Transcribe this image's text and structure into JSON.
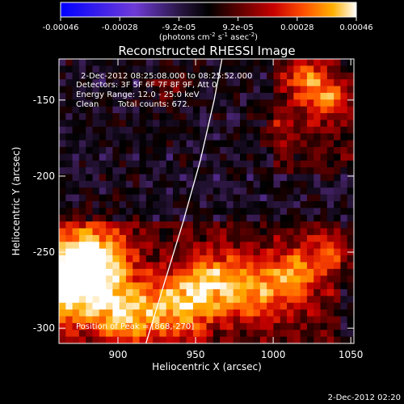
{
  "chart_data": {
    "type": "heatmap",
    "title": "Reconstructed RHESSI Image",
    "xlabel": "Heliocentric X (arcsec)",
    "ylabel": "Heliocentric Y (arcsec)",
    "xlim": [
      862,
      1052
    ],
    "ylim": [
      -310,
      -123
    ],
    "x_ticks": [
      900,
      950,
      1000,
      1050
    ],
    "y_ticks": [
      -150,
      -200,
      -250,
      -300
    ],
    "colorbar": {
      "ticks": [
        "-0.00046",
        "-0.00028",
        "-9.2e-05",
        "9.2e-05",
        "0.00028",
        "0.00046"
      ],
      "range": [
        -0.00046,
        0.00046
      ],
      "units": "(photons cm",
      "units_exp1": "-2",
      "units_mid": " s",
      "units_exp2": "-1",
      "units_mid2": " asec",
      "units_exp3": "-2",
      "units_end": ")"
    },
    "annotations": {
      "time_range": "2-Dec-2012 08:25:08.000 to 08:25:52.000",
      "detectors": "Detectors: 3F 5F 6F 7F 8F 9F, Att 0",
      "energy": "Energy Range: 12.0 - 25.0 keV",
      "clean_label": "Clean",
      "counts": "Total counts: 672.",
      "peak": "Position of Peak = [868,-270]"
    },
    "peak": [
      868,
      -270
    ],
    "limb_curve": [
      [
        918,
        -310
      ],
      [
        930,
        -270
      ],
      [
        942,
        -230
      ],
      [
        953,
        -190
      ],
      [
        962,
        -150
      ],
      [
        967,
        -123
      ]
    ],
    "color_scale": [
      "#0000ff",
      "#6f3bd8",
      "#3a1d55",
      "#000000",
      "#5a0000",
      "#c80000",
      "#ff4e00",
      "#ffb000",
      "#ffffff"
    ]
  },
  "footer": {
    "timestamp": "2-Dec-2012 02:20"
  }
}
